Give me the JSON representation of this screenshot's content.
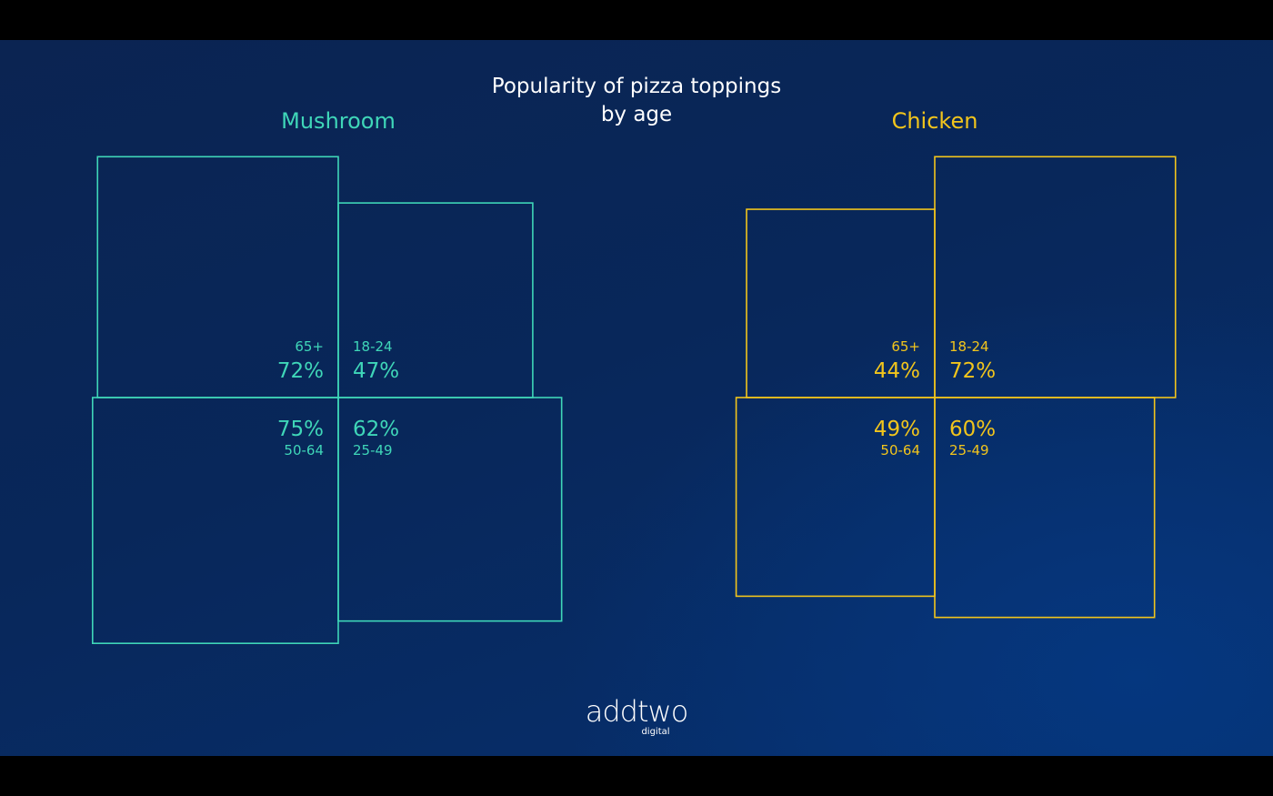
{
  "title_line1": "Popularity of pizza toppings",
  "title_line2": "by age",
  "logo": {
    "word": "addtwo",
    "sub": "digital"
  },
  "chart_data": [
    {
      "type": "area",
      "title": "Mushroom",
      "color": "#3fd6b8",
      "cells": [
        {
          "group": "65+",
          "value": 72
        },
        {
          "group": "18-24",
          "value": 47
        },
        {
          "group": "50-64",
          "value": 75
        },
        {
          "group": "25-49",
          "value": 62
        }
      ]
    },
    {
      "type": "area",
      "title": "Chicken",
      "color": "#f2c51c",
      "cells": [
        {
          "group": "65+",
          "value": 44
        },
        {
          "group": "18-24",
          "value": 72
        },
        {
          "group": "50-64",
          "value": 49
        },
        {
          "group": "25-49",
          "value": 60
        }
      ]
    }
  ]
}
